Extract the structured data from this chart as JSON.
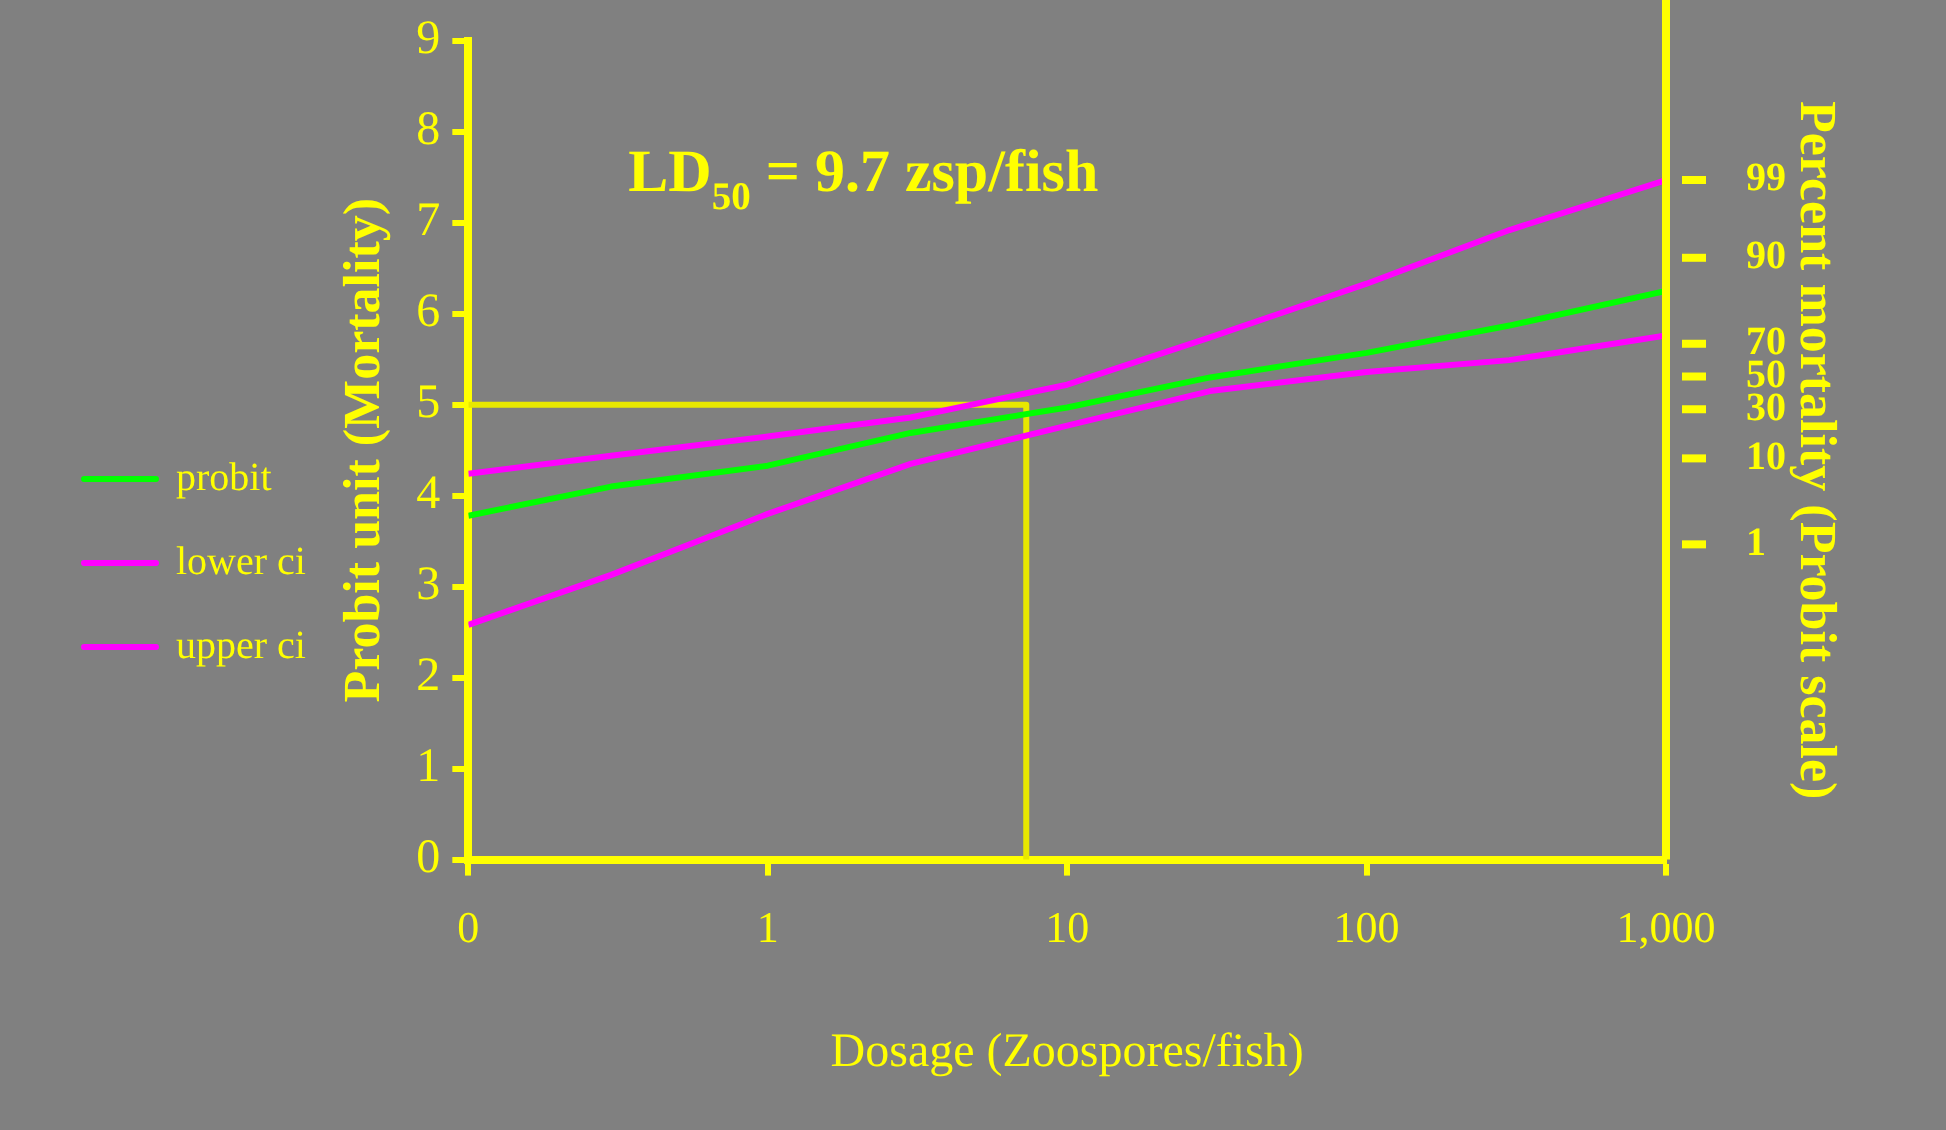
{
  "chart_data": {
    "type": "line",
    "xlabel": "Dosage (Zoospores/fish)",
    "ylabel": "Probit unit (Mortality)",
    "y2label": "Percent mortality (Probit scale)",
    "annotations": [
      "LD$_{50}$ = 9.7 zsp/fish",
      "99",
      "90",
      "70",
      "50",
      "30",
      "10",
      "1"
    ],
    "x": [
      0.1,
      0.3,
      1,
      3,
      10,
      30,
      100,
      300,
      1000
    ],
    "series": [
      {
        "name": "probit",
        "color": "#00ff00",
        "values": [
          3.78,
          4.1,
          4.33,
          4.69,
          4.97,
          5.3,
          5.57,
          5.87,
          6.25
        ]
      },
      {
        "name": "lower ci",
        "color": "#ff00ff",
        "values": [
          2.58,
          3.13,
          3.8,
          4.35,
          4.77,
          5.15,
          5.36,
          5.49,
          5.76
        ]
      },
      {
        "name": "upper ci",
        "color": "#ff00ff",
        "values": [
          4.24,
          4.44,
          4.65,
          4.86,
          5.22,
          5.74,
          6.33,
          6.92,
          7.47
        ],
        "x": [
          0.1,
          0.3,
          1,
          3,
          10,
          30,
          100,
          300,
          1000
        ]
      },
      {
        "color": "#e8e800",
        "x": [
          0.1,
          7.3,
          7.3
        ],
        "values": [
          5,
          5,
          0
        ]
      }
    ],
    "log": "x",
    "xlim": [
      0.1,
      1000
    ],
    "xticks": [
      {
        "value": 0.1,
        "label": "0"
      },
      1,
      10,
      100,
      {
        "value": 1000,
        "label": "1,000"
      }
    ],
    "ylim": [
      0,
      9
    ],
    "yticks": [
      0,
      1,
      2,
      3,
      4,
      5,
      6,
      7,
      8,
      9
    ],
    "grid": false,
    "legend": "left",
    "marker": "none",
    "line_style": "solid"
  }
}
